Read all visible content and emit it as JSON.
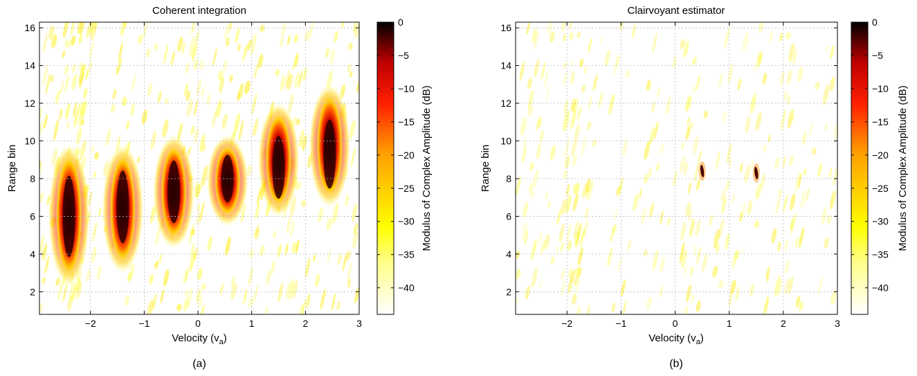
{
  "chart_data": [
    {
      "type": "heatmap",
      "title": "Coherent integration",
      "xlabel": "Velocity (v",
      "xlabel_sub": "a",
      "xlabel_end": ")",
      "ylabel": "Range bin",
      "colorbar_label": "Modulus of Complex Amplitude (dB)",
      "caption": "(a)",
      "xlim": [
        -2.95,
        3.0
      ],
      "ylim": [
        0.8,
        16.3
      ],
      "x_ticks": [
        -2,
        -1,
        0,
        1,
        2,
        3
      ],
      "x_tick_labels": [
        "−2",
        "−1",
        "0",
        "1",
        "2",
        "3"
      ],
      "y_ticks": [
        2,
        4,
        6,
        8,
        10,
        12,
        14,
        16
      ],
      "y_tick_labels": [
        "2",
        "4",
        "6",
        "8",
        "10",
        "12",
        "14",
        "16"
      ],
      "colorbar_range": [
        -44,
        0
      ],
      "colorbar_ticks": [
        0,
        -5,
        -10,
        -15,
        -20,
        -25,
        -30,
        -35,
        -40
      ],
      "colorbar_tick_labels": [
        "0",
        "−5",
        "−10",
        "−15",
        "−20",
        "−25",
        "−30",
        "−35",
        "−40"
      ],
      "colormap": "hot (reversed)",
      "grid": true,
      "blobs": [
        {
          "velocity": -2.4,
          "range_bin": 6.0,
          "range_extent": [
            2.8,
            9.3
          ],
          "peak_db": 0
        },
        {
          "velocity": -1.4,
          "range_bin": 6.5,
          "range_extent": [
            3.5,
            9.3
          ],
          "peak_db": 0
        },
        {
          "velocity": -0.45,
          "range_bin": 7.3,
          "range_extent": [
            4.8,
            9.8
          ],
          "peak_db": -2
        },
        {
          "velocity": 0.55,
          "range_bin": 8.0,
          "range_extent": [
            6.0,
            9.8
          ],
          "peak_db": -2
        },
        {
          "velocity": 1.5,
          "range_bin": 8.6,
          "range_extent": [
            6.5,
            11.5
          ],
          "peak_db": 0
        },
        {
          "velocity": 2.45,
          "range_bin": 9.3,
          "range_extent": [
            7.0,
            12.5
          ],
          "peak_db": 0
        }
      ]
    },
    {
      "type": "heatmap",
      "title": "Clairvoyant estimator",
      "xlabel": "Velocity (v",
      "xlabel_sub": "a",
      "xlabel_end": ")",
      "ylabel": "Range bin",
      "colorbar_label": "Modulus of Complex Amplitude (dB)",
      "caption": "(b)",
      "xlim": [
        -2.95,
        3.0
      ],
      "ylim": [
        0.8,
        16.3
      ],
      "x_ticks": [
        -2,
        -1,
        0,
        1,
        2,
        3
      ],
      "x_tick_labels": [
        "−2",
        "−1",
        "0",
        "1",
        "2",
        "3"
      ],
      "y_ticks": [
        2,
        4,
        6,
        8,
        10,
        12,
        14,
        16
      ],
      "y_tick_labels": [
        "2",
        "4",
        "6",
        "8",
        "10",
        "12",
        "14",
        "16"
      ],
      "colorbar_range": [
        -44,
        0
      ],
      "colorbar_ticks": [
        0,
        -5,
        -10,
        -15,
        -20,
        -25,
        -30,
        -35,
        -40
      ],
      "colorbar_tick_labels": [
        "0",
        "−5",
        "−10",
        "−15",
        "−20",
        "−25",
        "−30",
        "−35",
        "−40"
      ],
      "colormap": "hot (reversed)",
      "grid": true,
      "peaks": [
        {
          "velocity": 0.5,
          "range_bin": 8.4,
          "peak_db": 0
        },
        {
          "velocity": 1.5,
          "range_bin": 8.3,
          "peak_db": 0
        }
      ]
    }
  ]
}
